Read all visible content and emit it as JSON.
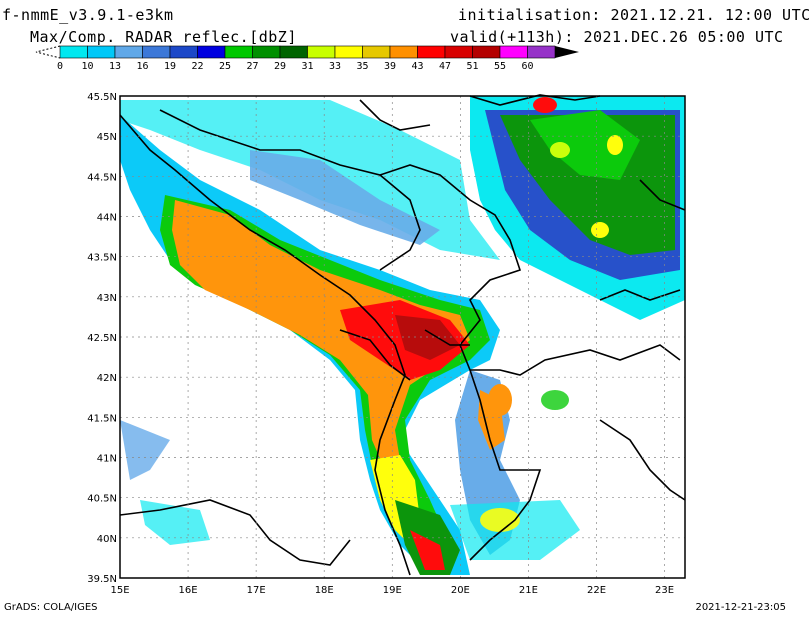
{
  "header": {
    "model": "f-nmmE_v3.9.1-e3km",
    "field": "Max/Comp. RADAR reflec.[dbZ]",
    "init_label": "initialisation:",
    "init_value": "2021.12.21. 12:00 UTC",
    "valid_label": "valid(+113h):",
    "valid_value": "2021.DEC.26 05:00 UTC"
  },
  "colorbar": {
    "ticks": [
      "0",
      "10",
      "13",
      "16",
      "19",
      "22",
      "25",
      "27",
      "29",
      "31",
      "33",
      "35",
      "39",
      "43",
      "47",
      "51",
      "55",
      "60"
    ],
    "colors": [
      "#00e8f0",
      "#00c8f8",
      "#60a8e8",
      "#3c78d8",
      "#1c48c8",
      "#0000e0",
      "#00c800",
      "#009000",
      "#006400",
      "#c8ff00",
      "#ffff00",
      "#e6c800",
      "#ff9000",
      "#ff0000",
      "#d80000",
      "#b40000",
      "#ff00ff",
      "#9632c8",
      "#000000"
    ]
  },
  "map": {
    "x_ticks": [
      "15E",
      "16E",
      "17E",
      "18E",
      "19E",
      "20E",
      "21E",
      "22E",
      "23E"
    ],
    "y_ticks": [
      "45.5N",
      "45N",
      "44.5N",
      "44N",
      "43.5N",
      "43N",
      "42.5N",
      "42N",
      "41.5N",
      "41N",
      "40.5N",
      "40N",
      "39.5N"
    ],
    "lon_range": [
      15,
      23.3
    ],
    "lat_range": [
      39.5,
      45.5
    ],
    "land_color": "#ffffff",
    "sea_color": "#ffffff"
  },
  "footer": {
    "credit": "GrADS: COLA/IGES",
    "stamp": "2021-12-21-23:05"
  }
}
